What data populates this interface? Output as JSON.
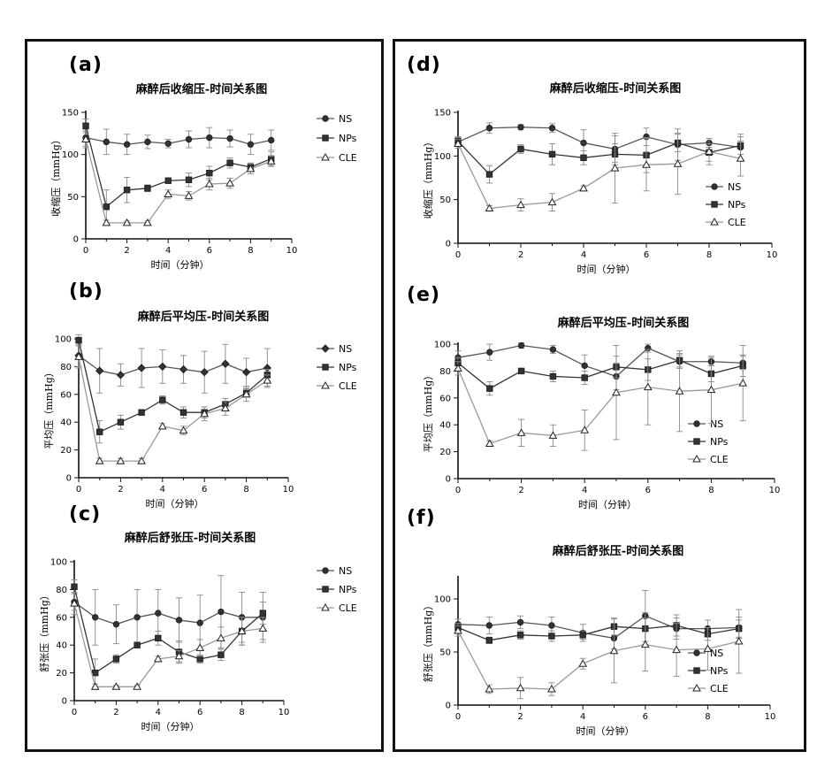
{
  "chart_data": [
    {
      "id": "a",
      "panel_label": "(a)",
      "type": "line",
      "title": "麻醉后收缩压-时间关系图",
      "xlabel": "时间（分钟）",
      "ylabel": "收缩压（mmHg）",
      "xlim": [
        0,
        10
      ],
      "ylim": [
        0,
        150
      ],
      "xticks": [
        0,
        2,
        4,
        6,
        8,
        10
      ],
      "yticks": [
        0,
        50,
        100,
        150
      ],
      "legend_position": "right-top",
      "x": [
        0,
        1,
        2,
        3,
        4,
        5,
        6,
        7,
        8,
        9
      ],
      "series": [
        {
          "name": "NS",
          "marker": "circle",
          "values": [
            120,
            115,
            112,
            115,
            113,
            118,
            120,
            119,
            112,
            117
          ],
          "errors": [
            10,
            15,
            12,
            8,
            5,
            10,
            12,
            10,
            12,
            12
          ]
        },
        {
          "name": "NPs",
          "marker": "square",
          "values": [
            134,
            38,
            58,
            60,
            69,
            70,
            78,
            90,
            85,
            95
          ],
          "errors": [
            8,
            20,
            15,
            4,
            3,
            8,
            8,
            6,
            5,
            8
          ]
        },
        {
          "name": "CLE",
          "marker": "triangle",
          "values": [
            118,
            19,
            19,
            19,
            53,
            51,
            65,
            66,
            83,
            92
          ],
          "errors": [
            10,
            3,
            2,
            2,
            5,
            5,
            7,
            6,
            6,
            6
          ]
        }
      ]
    },
    {
      "id": "b",
      "panel_label": "(b)",
      "type": "line",
      "title": "麻醉后平均压-时间关系图",
      "xlabel": "时间（分钟）",
      "ylabel": "平均压（mmHg）",
      "xlim": [
        0,
        10
      ],
      "ylim": [
        0,
        100
      ],
      "xticks": [
        0,
        2,
        4,
        6,
        8,
        10
      ],
      "yticks": [
        0,
        20,
        40,
        60,
        80,
        100
      ],
      "legend_position": "right-top",
      "x": [
        0,
        1,
        2,
        3,
        4,
        5,
        6,
        7,
        8,
        9
      ],
      "series": [
        {
          "name": "NS",
          "marker": "diamond",
          "values": [
            88,
            77,
            74,
            79,
            80,
            78,
            76,
            82,
            76,
            79
          ],
          "errors": [
            8,
            16,
            8,
            14,
            12,
            10,
            15,
            14,
            10,
            14
          ]
        },
        {
          "name": "NPs",
          "marker": "square",
          "values": [
            99,
            33,
            40,
            47,
            56,
            47,
            47,
            53,
            61,
            74
          ],
          "errors": [
            4,
            8,
            5,
            2,
            3,
            4,
            4,
            4,
            3,
            4
          ]
        },
        {
          "name": "CLE",
          "marker": "triangle",
          "values": [
            87,
            12,
            12,
            12,
            37,
            34,
            46,
            50,
            60,
            70
          ],
          "errors": [
            8,
            2,
            2,
            2,
            2,
            3,
            5,
            5,
            5,
            4
          ]
        }
      ]
    },
    {
      "id": "c",
      "panel_label": "(c)",
      "type": "line",
      "title": "麻醉后舒张压-时间关系图",
      "xlabel": "时间（分钟）",
      "ylabel": "舒张压（mmHg）",
      "xlim": [
        0,
        10
      ],
      "ylim": [
        0,
        100
      ],
      "xticks": [
        0,
        2,
        4,
        6,
        8,
        10
      ],
      "yticks": [
        0,
        20,
        40,
        60,
        80,
        100
      ],
      "legend_position": "right-top",
      "x": [
        0,
        1,
        2,
        3,
        4,
        5,
        6,
        7,
        8,
        9
      ],
      "series": [
        {
          "name": "NS",
          "marker": "circle",
          "values": [
            71,
            60,
            55,
            60,
            63,
            58,
            56,
            64,
            60,
            60
          ],
          "errors": [
            6,
            20,
            14,
            20,
            17,
            16,
            20,
            26,
            18,
            18
          ]
        },
        {
          "name": "NPs",
          "marker": "square",
          "values": [
            82,
            20,
            30,
            40,
            45,
            35,
            30,
            33,
            50,
            63
          ],
          "errors": [
            5,
            10,
            3,
            2,
            5,
            8,
            3,
            4,
            10,
            8
          ]
        },
        {
          "name": "CLE",
          "marker": "triangle",
          "values": [
            70,
            10,
            10,
            10,
            30,
            32,
            38,
            45,
            50,
            52
          ],
          "errors": [
            8,
            2,
            1,
            1,
            2,
            4,
            6,
            8,
            10,
            8
          ]
        }
      ]
    },
    {
      "id": "d",
      "panel_label": "(d)",
      "type": "line",
      "title": "麻醉后收缩压-时间关系图",
      "xlabel": "时间（分钟）",
      "ylabel": "收缩压（mmHg）",
      "xlim": [
        0,
        10
      ],
      "ylim": [
        0,
        150
      ],
      "xticks": [
        0,
        2,
        4,
        6,
        8,
        10
      ],
      "yticks": [
        0,
        50,
        100,
        150
      ],
      "legend_position": "center-right",
      "x": [
        0,
        1,
        2,
        3,
        4,
        5,
        6,
        7,
        8,
        9
      ],
      "series": [
        {
          "name": "NS",
          "marker": "circle",
          "values": [
            116,
            132,
            133,
            132,
            115,
            108,
            122,
            113,
            115,
            110
          ],
          "errors": [
            5,
            6,
            3,
            5,
            15,
            15,
            10,
            18,
            5,
            15
          ]
        },
        {
          "name": "NPs",
          "marker": "square",
          "values": [
            117,
            79,
            108,
            102,
            98,
            102,
            101,
            115,
            104,
            112
          ],
          "errors": [
            5,
            10,
            5,
            12,
            8,
            12,
            20,
            10,
            10,
            10
          ]
        },
        {
          "name": "CLE",
          "marker": "triangle",
          "values": [
            114,
            40,
            44,
            47,
            63,
            86,
            90,
            91,
            105,
            97
          ],
          "errors": [
            5,
            3,
            7,
            10,
            3,
            40,
            30,
            35,
            15,
            20
          ]
        }
      ]
    },
    {
      "id": "e",
      "panel_label": "(e)",
      "type": "line",
      "title": "麻醉后平均压-时间关系图",
      "xlabel": "时间（分钟）",
      "ylabel": "平均压（mmHg）",
      "xlim": [
        0,
        10
      ],
      "ylim": [
        0,
        100
      ],
      "xticks": [
        0,
        2,
        4,
        6,
        8,
        10
      ],
      "yticks": [
        0,
        20,
        40,
        60,
        80,
        100
      ],
      "legend_position": "center-right",
      "x": [
        0,
        1,
        2,
        3,
        4,
        5,
        6,
        7,
        8,
        9
      ],
      "series": [
        {
          "name": "NS",
          "marker": "circle",
          "values": [
            90,
            94,
            99,
            96,
            84,
            76,
            97,
            87,
            87,
            86
          ],
          "errors": [
            5,
            6,
            2,
            3,
            8,
            10,
            3,
            5,
            3,
            5
          ]
        },
        {
          "name": "NPs",
          "marker": "square",
          "values": [
            86,
            67,
            80,
            76,
            75,
            83,
            81,
            88,
            78,
            84
          ],
          "errors": [
            4,
            5,
            2,
            4,
            5,
            8,
            8,
            5,
            6,
            8
          ]
        },
        {
          "name": "CLE",
          "marker": "triangle",
          "values": [
            82,
            26,
            34,
            32,
            36,
            64,
            68,
            65,
            66,
            71
          ],
          "errors": [
            5,
            2,
            10,
            8,
            15,
            35,
            28,
            30,
            25,
            28
          ]
        }
      ]
    },
    {
      "id": "f",
      "panel_label": "(f)",
      "type": "line",
      "title": "麻醉后舒张压-时间关系图",
      "xlabel": "时间（分钟）",
      "ylabel": "舒张压（mmHg）",
      "xlim": [
        0,
        10
      ],
      "ylim": [
        0,
        120
      ],
      "xticks": [
        0,
        2,
        4,
        6,
        8,
        10
      ],
      "yticks": [
        0,
        50,
        100
      ],
      "legend_position": "lower-right",
      "x": [
        0,
        1,
        2,
        3,
        4,
        5,
        6,
        7,
        8,
        9
      ],
      "series": [
        {
          "name": "NS",
          "marker": "circle",
          "values": [
            76,
            75,
            78,
            75,
            68,
            63,
            84,
            72,
            72,
            73
          ],
          "errors": [
            5,
            8,
            6,
            8,
            8,
            10,
            24,
            10,
            8,
            10
          ]
        },
        {
          "name": "NPs",
          "marker": "square",
          "values": [
            73,
            61,
            66,
            65,
            66,
            74,
            72,
            75,
            67,
            72
          ],
          "errors": [
            4,
            3,
            4,
            5,
            4,
            8,
            15,
            10,
            6,
            8
          ]
        },
        {
          "name": "CLE",
          "marker": "triangle",
          "values": [
            70,
            15,
            16,
            15,
            39,
            51,
            57,
            52,
            53,
            60
          ],
          "errors": [
            5,
            4,
            10,
            6,
            5,
            30,
            25,
            25,
            20,
            30
          ]
        }
      ]
    }
  ]
}
